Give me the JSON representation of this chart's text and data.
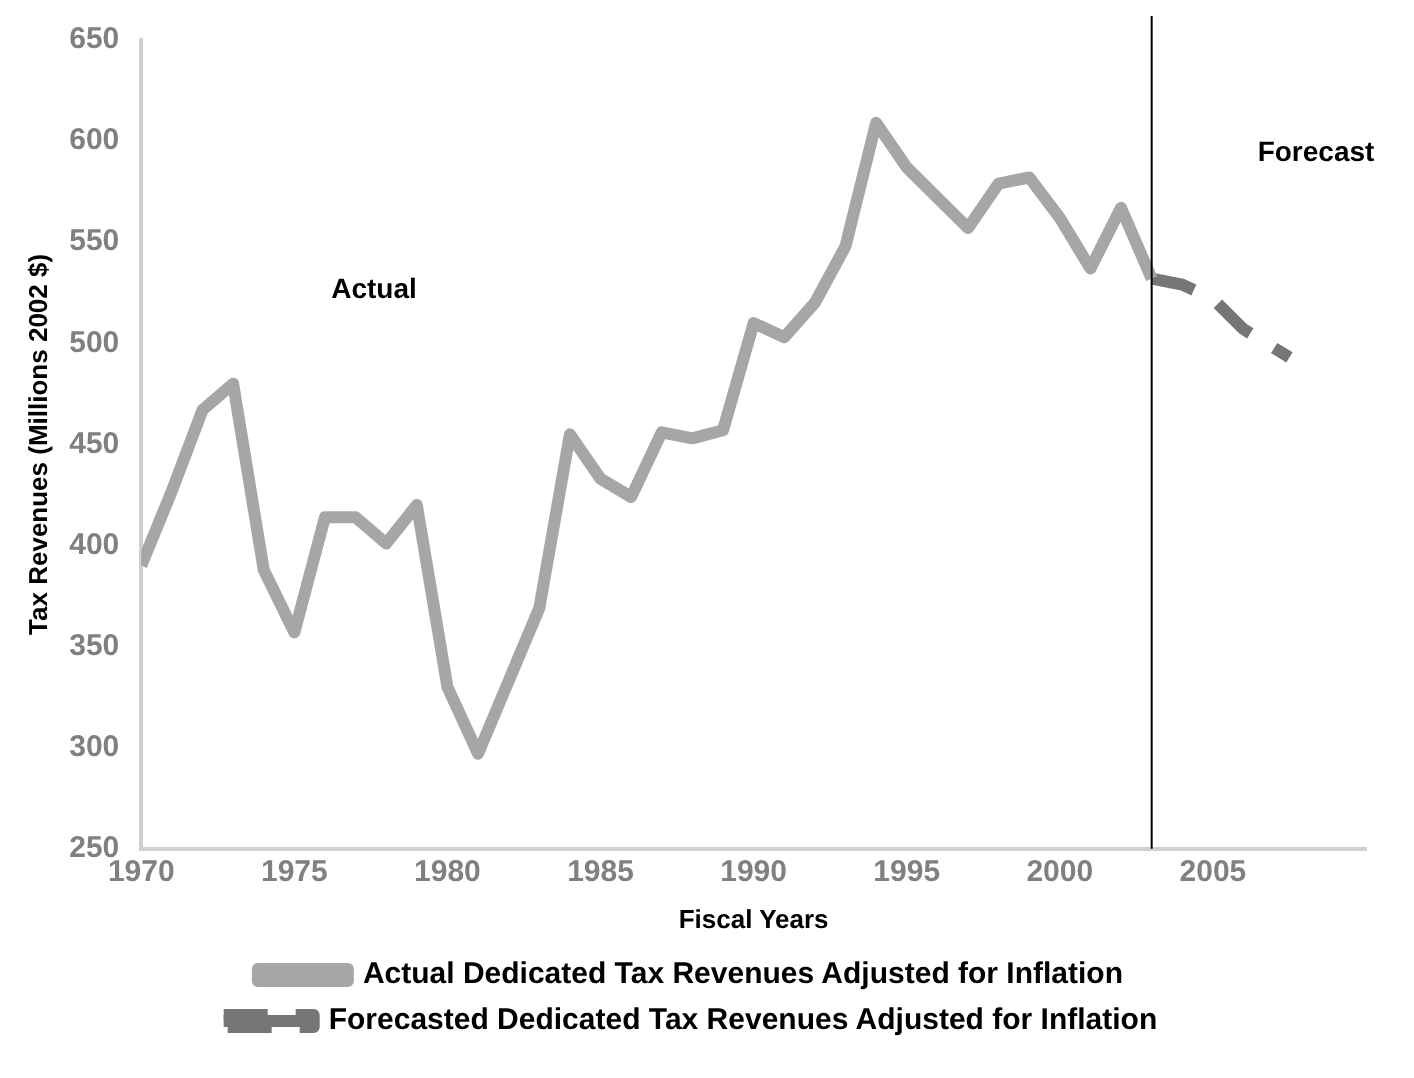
{
  "chart_data": {
    "type": "line",
    "xlabel": "Fiscal Years",
    "ylabel": "Tax Revenues (Millions 2002 $)",
    "xlim": [
      1970,
      2010
    ],
    "xticks": [
      1970,
      1975,
      1980,
      1985,
      1990,
      1995,
      2000,
      2005
    ],
    "ylim": [
      250,
      650
    ],
    "yticks": [
      250,
      300,
      350,
      400,
      450,
      500,
      550,
      600,
      650
    ],
    "grid": false,
    "legend": "bottom",
    "marker": "none",
    "annotations": [
      "Actual",
      "Forecast"
    ],
    "ref_lines": [
      {
        "axis": "x",
        "value": 2003,
        "color": "#000000"
      }
    ],
    "series": [
      {
        "name": "Actual Dedicated Tax Revenues Adjusted for Inflation",
        "color": "#a6a6a6",
        "line_style": "solid",
        "x": [
          1970,
          1971,
          1972,
          1973,
          1974,
          1975,
          1976,
          1977,
          1978,
          1979,
          1980,
          1981,
          1982,
          1983,
          1984,
          1985,
          1986,
          1987,
          1988,
          1989,
          1990,
          1991,
          1992,
          1993,
          1994,
          1995,
          1996,
          1997,
          1998,
          1999,
          2000,
          2001,
          2002,
          2003
        ],
        "values": [
          390,
          427,
          467,
          480,
          388,
          357,
          414,
          414,
          401,
          420,
          330,
          297,
          333,
          369,
          455,
          433,
          424,
          456,
          453,
          457,
          510,
          503,
          520,
          548,
          609,
          587,
          572,
          557,
          579,
          582,
          562,
          537,
          567,
          532
        ]
      },
      {
        "name": "Forecasted Dedicated Tax Revenues Adjusted for Inflation",
        "color": "#767676",
        "line_style": "dashed",
        "x": [
          2003,
          2004,
          2005,
          2006,
          2007.5
        ],
        "values": [
          532,
          529,
          522,
          507,
          493
        ]
      }
    ]
  }
}
